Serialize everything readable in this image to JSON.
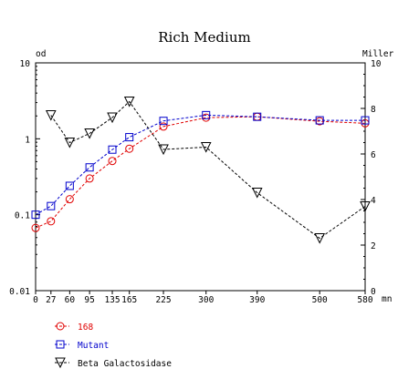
{
  "chart_data": {
    "type": "line",
    "title": "Rich Medium",
    "xlabel": "mn",
    "ylabel_left": "od",
    "ylabel_right": "Miller",
    "x_ticks": [
      0,
      27,
      60,
      95,
      135,
      165,
      225,
      300,
      390,
      500,
      580
    ],
    "x_tick_labels": [
      "0",
      "27",
      "60",
      "95",
      "135",
      "165",
      "225",
      "300",
      "390",
      "500",
      "580"
    ],
    "xlim": [
      0,
      580
    ],
    "y_left_scale": "log",
    "y_left_ticks": [
      0.01,
      0.1,
      1,
      10
    ],
    "y_left_tick_labels": [
      "0.01",
      "0.1",
      "1",
      "10"
    ],
    "y_left_lim": [
      0.01,
      10
    ],
    "y_right_scale": "linear",
    "y_right_ticks": [
      0,
      2,
      4,
      6,
      8,
      10
    ],
    "y_right_tick_labels": [
      "0",
      "2",
      "4",
      "6",
      "8",
      "10"
    ],
    "y_right_lim": [
      0,
      10
    ],
    "grid": false,
    "legend_placement": "bottom-left",
    "series": [
      {
        "name": "168",
        "axis": "left",
        "marker": "circle",
        "color": "#e00000",
        "x": [
          0,
          27,
          60,
          95,
          135,
          165,
          225,
          300,
          390,
          500,
          580
        ],
        "y": [
          0.067,
          0.082,
          0.16,
          0.3,
          0.51,
          0.74,
          1.45,
          1.9,
          1.95,
          1.7,
          1.6
        ]
      },
      {
        "name": "Mutant",
        "axis": "left",
        "marker": "square",
        "color": "#0000cc",
        "x": [
          0,
          27,
          60,
          95,
          135,
          165,
          225,
          300,
          390,
          500,
          580
        ],
        "y": [
          0.1,
          0.13,
          0.24,
          0.42,
          0.72,
          1.05,
          1.72,
          2.05,
          1.95,
          1.75,
          1.75
        ]
      },
      {
        "name": "Beta Galactosidase",
        "axis": "right",
        "marker": "triangle-down",
        "color": "#000000",
        "x": [
          27,
          60,
          95,
          135,
          165,
          225,
          300,
          390,
          500,
          580
        ],
        "y": [
          7.7,
          6.5,
          6.9,
          7.6,
          8.3,
          6.2,
          6.3,
          4.3,
          2.3,
          3.7
        ]
      }
    ]
  }
}
